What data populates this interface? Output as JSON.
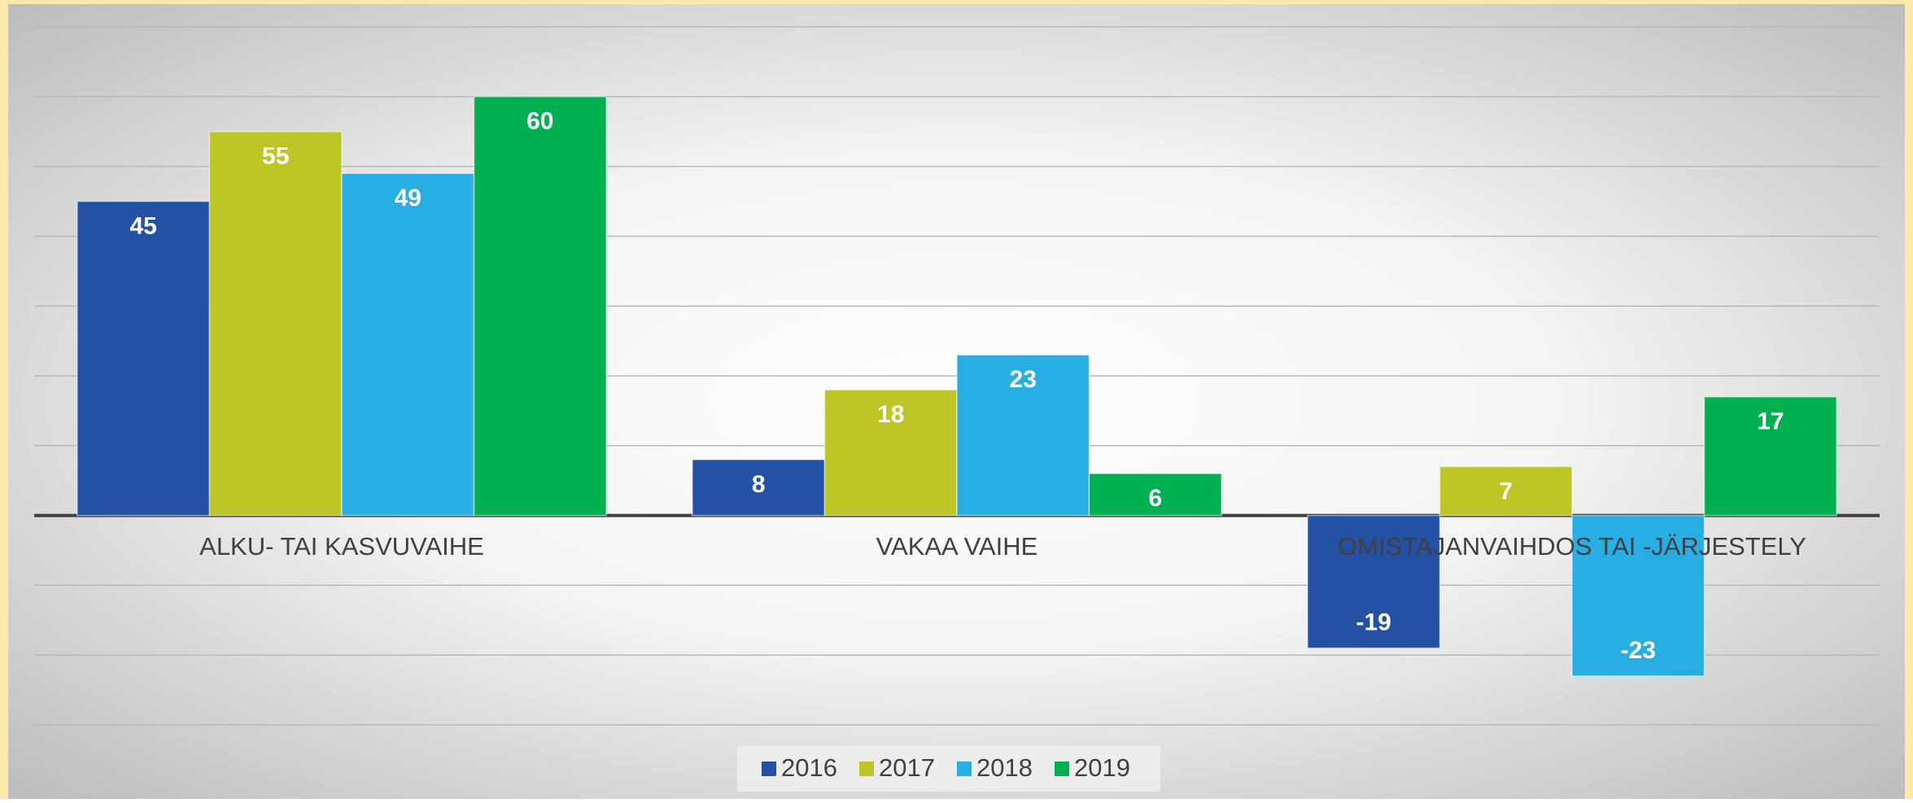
{
  "chart_data": {
    "type": "bar",
    "categories": [
      "ALKU- TAI KASVUVAIHE",
      "VAKAA VAIHE",
      "OMISTAJANVAIHDOS TAI -JÄRJESTELY"
    ],
    "series": [
      {
        "name": "2016",
        "color": "#2451a4",
        "values": [
          45,
          8,
          -19
        ]
      },
      {
        "name": "2017",
        "color": "#bec526",
        "values": [
          55,
          18,
          7
        ]
      },
      {
        "name": "2018",
        "color": "#29aee4",
        "values": [
          49,
          23,
          -23
        ]
      },
      {
        "name": "2019",
        "color": "#00b050",
        "values": [
          60,
          6,
          17
        ]
      }
    ],
    "ylim": [
      -30,
      70
    ],
    "yticks": [
      -30,
      -20,
      -10,
      0,
      10,
      20,
      30,
      40,
      50,
      60,
      70
    ],
    "grid": true,
    "legend": "bottom"
  }
}
